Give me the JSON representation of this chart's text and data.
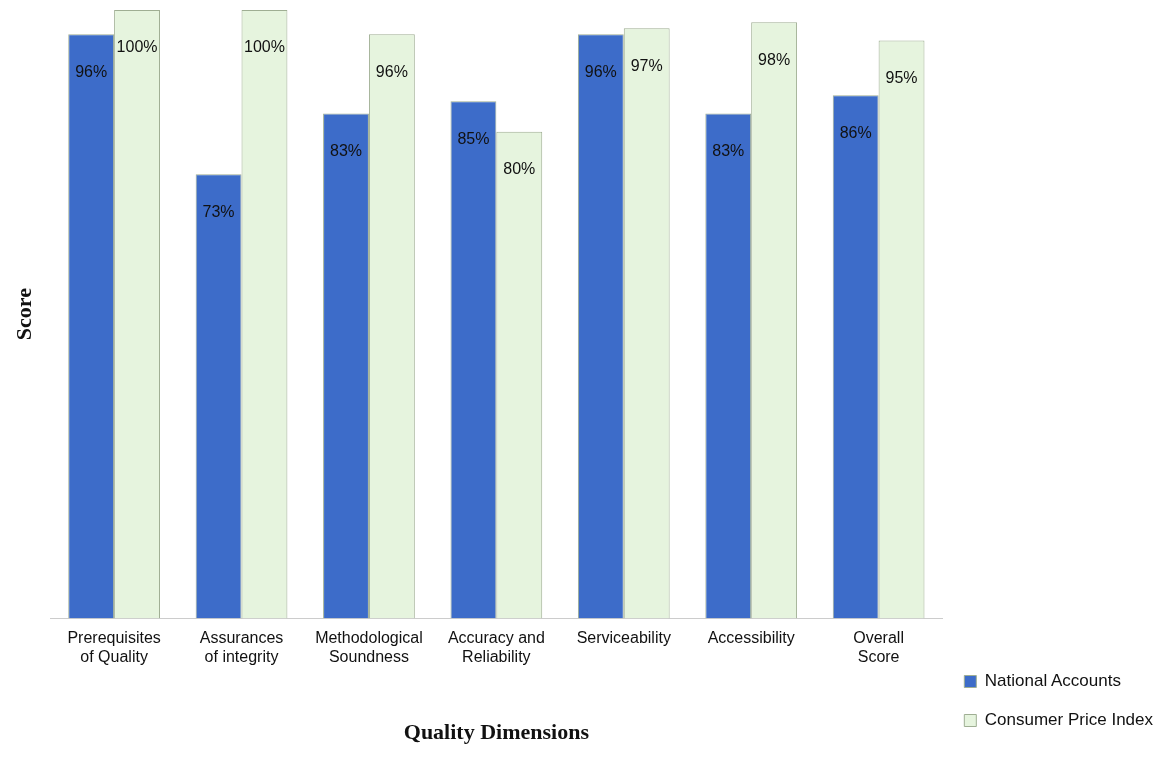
{
  "chart_data": {
    "type": "bar",
    "xlabel": "Quality Dimensions",
    "ylabel": "Score",
    "categories": [
      "Prerequisites of Quality",
      "Assurances of integrity",
      "Methodological Soundness",
      "Accuracy and Reliability",
      "Serviceability",
      "Accessibility",
      "Overall Score"
    ],
    "series": [
      {
        "name": "National Accounts",
        "color": "#3d6cc9",
        "values": [
          96,
          73,
          83,
          85,
          96,
          83,
          86
        ],
        "value_labels": [
          "96%",
          "73%",
          "83%",
          "85%",
          "96%",
          "83%",
          "86%"
        ]
      },
      {
        "name": "Consumer Price Index",
        "color": "#e6f4de",
        "values": [
          100,
          100,
          96,
          80,
          97,
          98,
          95
        ],
        "value_labels": [
          "100%",
          "100%",
          "96%",
          "80%",
          "97%",
          "98%",
          "95%"
        ]
      }
    ],
    "legend": "bottom right",
    "grid": false
  }
}
